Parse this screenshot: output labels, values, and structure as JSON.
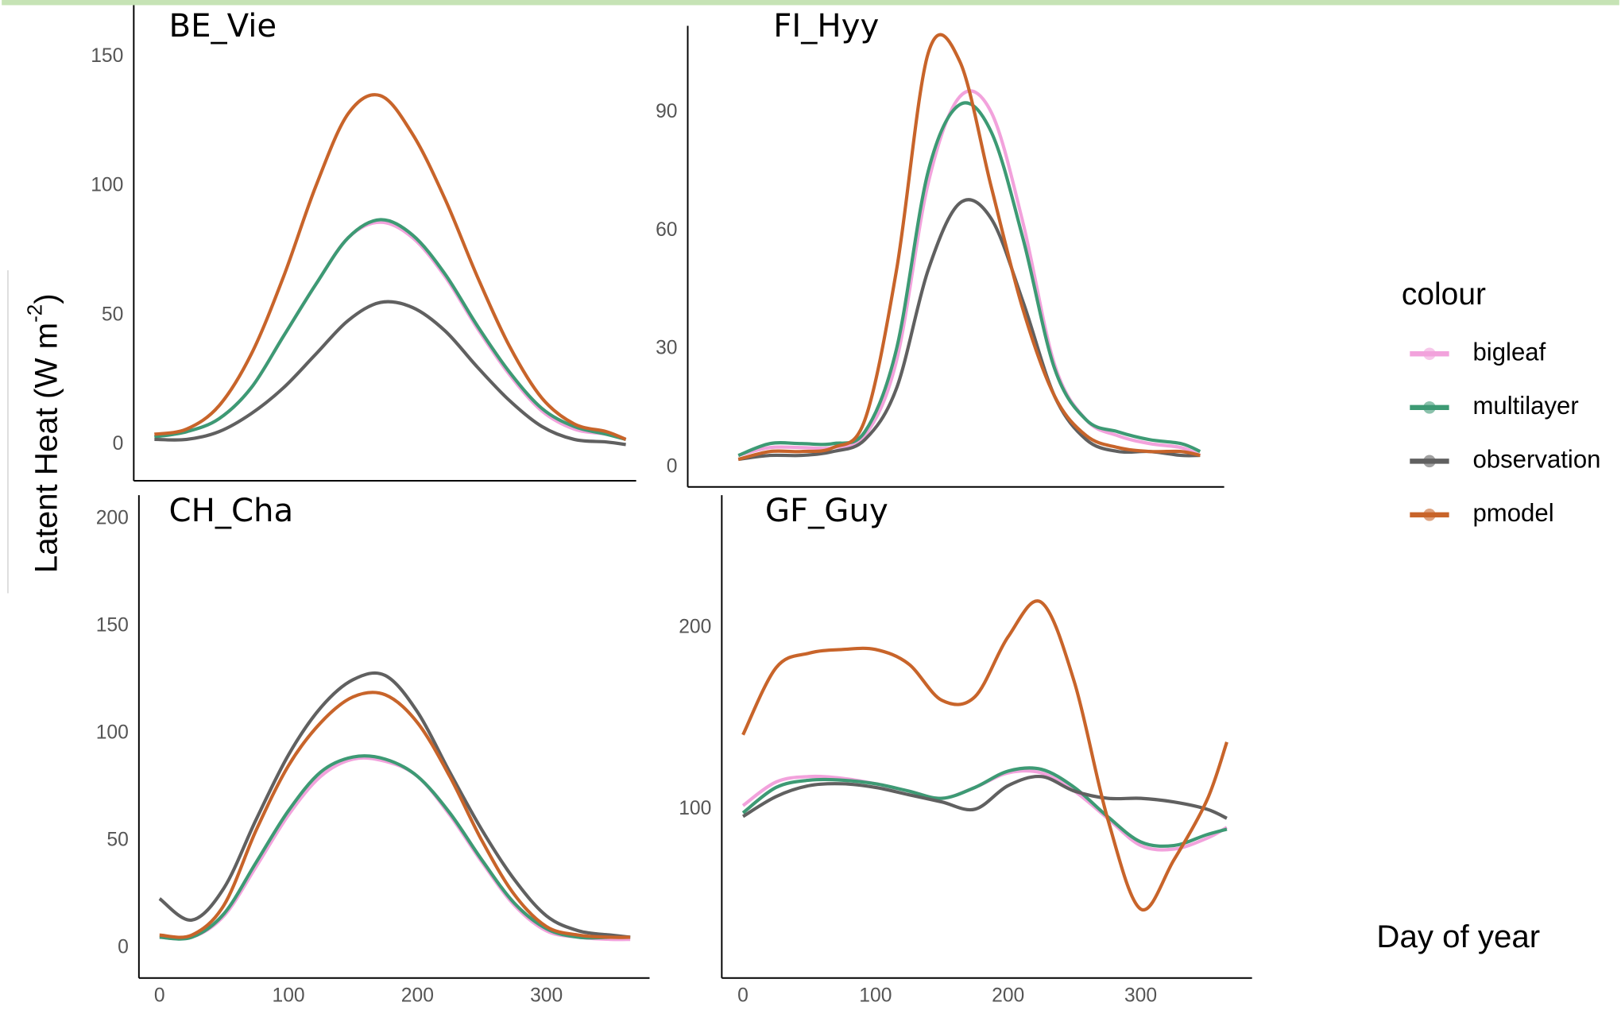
{
  "y_label": [
    "Latent Heat (W m",
    "-2",
    ")"
  ],
  "x_label": "Day of year",
  "legend_title": "colour",
  "chart_data": [
    {
      "type": "line",
      "title": "BE_Vie",
      "x": [
        0,
        25,
        50,
        75,
        100,
        125,
        150,
        175,
        200,
        225,
        250,
        275,
        300,
        325,
        350,
        365
      ],
      "xlim": [
        -16,
        373
      ],
      "ylim": [
        -14,
        170
      ],
      "yticks": [
        0,
        50,
        100,
        150
      ],
      "series": [
        {
          "name": "bigleaf",
          "color": "#f2a2dc",
          "values": [
            3,
            5,
            10,
            22,
            42,
            62,
            80,
            86,
            80,
            65,
            45,
            27,
            13,
            6,
            4,
            2
          ]
        },
        {
          "name": "multilayer",
          "color": "#3d9a74",
          "values": [
            3,
            5,
            10,
            22,
            42,
            62,
            80,
            87,
            81,
            66,
            46,
            28,
            14,
            7,
            4,
            2
          ]
        },
        {
          "name": "observation",
          "color": "#606060",
          "values": [
            2,
            2,
            5,
            12,
            22,
            35,
            48,
            55,
            53,
            44,
            30,
            17,
            7,
            2,
            1,
            0
          ]
        },
        {
          "name": "pmodel",
          "color": "#c8642a",
          "values": [
            4,
            6,
            15,
            35,
            65,
            100,
            128,
            135,
            120,
            95,
            65,
            38,
            18,
            8,
            5,
            2
          ]
        }
      ]
    },
    {
      "type": "line",
      "title": "FI_Hyy",
      "x": [
        0,
        25,
        50,
        75,
        100,
        125,
        150,
        175,
        200,
        225,
        250,
        275,
        300,
        325,
        350,
        365
      ],
      "xlim": [
        -40,
        384
      ],
      "ylim": [
        -5,
        112
      ],
      "yticks": [
        0,
        30,
        60,
        90
      ],
      "series": [
        {
          "name": "bigleaf",
          "color": "#f2a2dc",
          "values": [
            3,
            5,
            5,
            5,
            8,
            27,
            72,
            94,
            90,
            62,
            26,
            12,
            8,
            6,
            5,
            3
          ]
        },
        {
          "name": "multilayer",
          "color": "#3d9a74",
          "values": [
            3,
            6,
            6,
            6,
            9,
            30,
            75,
            92,
            85,
            58,
            25,
            12,
            9,
            7,
            6,
            4
          ]
        },
        {
          "name": "observation",
          "color": "#606060",
          "values": [
            2,
            3,
            3,
            4,
            7,
            20,
            50,
            67,
            63,
            42,
            18,
            7,
            4,
            4,
            3,
            3
          ]
        },
        {
          "name": "pmodel",
          "color": "#c8642a",
          "values": [
            2,
            4,
            4,
            5,
            12,
            50,
            105,
            103,
            71,
            40,
            18,
            8,
            5,
            4,
            4,
            3
          ]
        }
      ]
    },
    {
      "type": "line",
      "title": "CH_Cha",
      "x": [
        0,
        25,
        50,
        75,
        100,
        125,
        150,
        175,
        200,
        225,
        250,
        275,
        300,
        325,
        350,
        365
      ],
      "xlim": [
        -16,
        380
      ],
      "ylim": [
        -14,
        211
      ],
      "yticks": [
        0,
        50,
        100,
        150,
        200
      ],
      "xticks": [
        0,
        100,
        200,
        300
      ],
      "series": [
        {
          "name": "bigleaf",
          "color": "#f2a2dc",
          "values": [
            5,
            5,
            15,
            38,
            62,
            80,
            88,
            87,
            80,
            62,
            40,
            20,
            8,
            5,
            4,
            4
          ]
        },
        {
          "name": "multilayer",
          "color": "#3d9a74",
          "values": [
            5,
            5,
            16,
            40,
            64,
            82,
            89,
            88,
            80,
            63,
            41,
            21,
            9,
            5,
            5,
            5
          ]
        },
        {
          "name": "observation",
          "color": "#606060",
          "values": [
            23,
            13,
            28,
            60,
            90,
            112,
            125,
            127,
            110,
            82,
            55,
            32,
            15,
            8,
            6,
            5
          ]
        },
        {
          "name": "pmodel",
          "color": "#c8642a",
          "values": [
            6,
            6,
            20,
            55,
            85,
            105,
            117,
            118,
            105,
            80,
            50,
            25,
            10,
            6,
            5,
            5
          ]
        }
      ]
    },
    {
      "type": "line",
      "title": "GF_Guy",
      "x": [
        0,
        25,
        50,
        75,
        100,
        125,
        150,
        175,
        200,
        225,
        250,
        275,
        300,
        325,
        350,
        365
      ],
      "xlim": [
        -16,
        384
      ],
      "ylim": [
        7,
        273
      ],
      "yticks": [
        100,
        200
      ],
      "xticks": [
        0,
        100,
        200,
        300
      ],
      "series": [
        {
          "name": "bigleaf",
          "color": "#f2a2dc",
          "values": [
            102,
            115,
            118,
            117,
            114,
            110,
            106,
            112,
            120,
            120,
            110,
            95,
            80,
            78,
            84,
            90
          ]
        },
        {
          "name": "multilayer",
          "color": "#3d9a74",
          "values": [
            98,
            112,
            116,
            116,
            114,
            110,
            106,
            112,
            121,
            122,
            112,
            96,
            82,
            80,
            86,
            89
          ]
        },
        {
          "name": "observation",
          "color": "#606060",
          "values": [
            96,
            107,
            113,
            114,
            112,
            108,
            104,
            100,
            113,
            118,
            110,
            106,
            106,
            104,
            100,
            95
          ]
        },
        {
          "name": "pmodel",
          "color": "#c8642a",
          "values": [
            141,
            178,
            186,
            188,
            188,
            180,
            160,
            162,
            195,
            214,
            170,
            95,
            45,
            72,
            105,
            137
          ]
        }
      ]
    }
  ]
}
